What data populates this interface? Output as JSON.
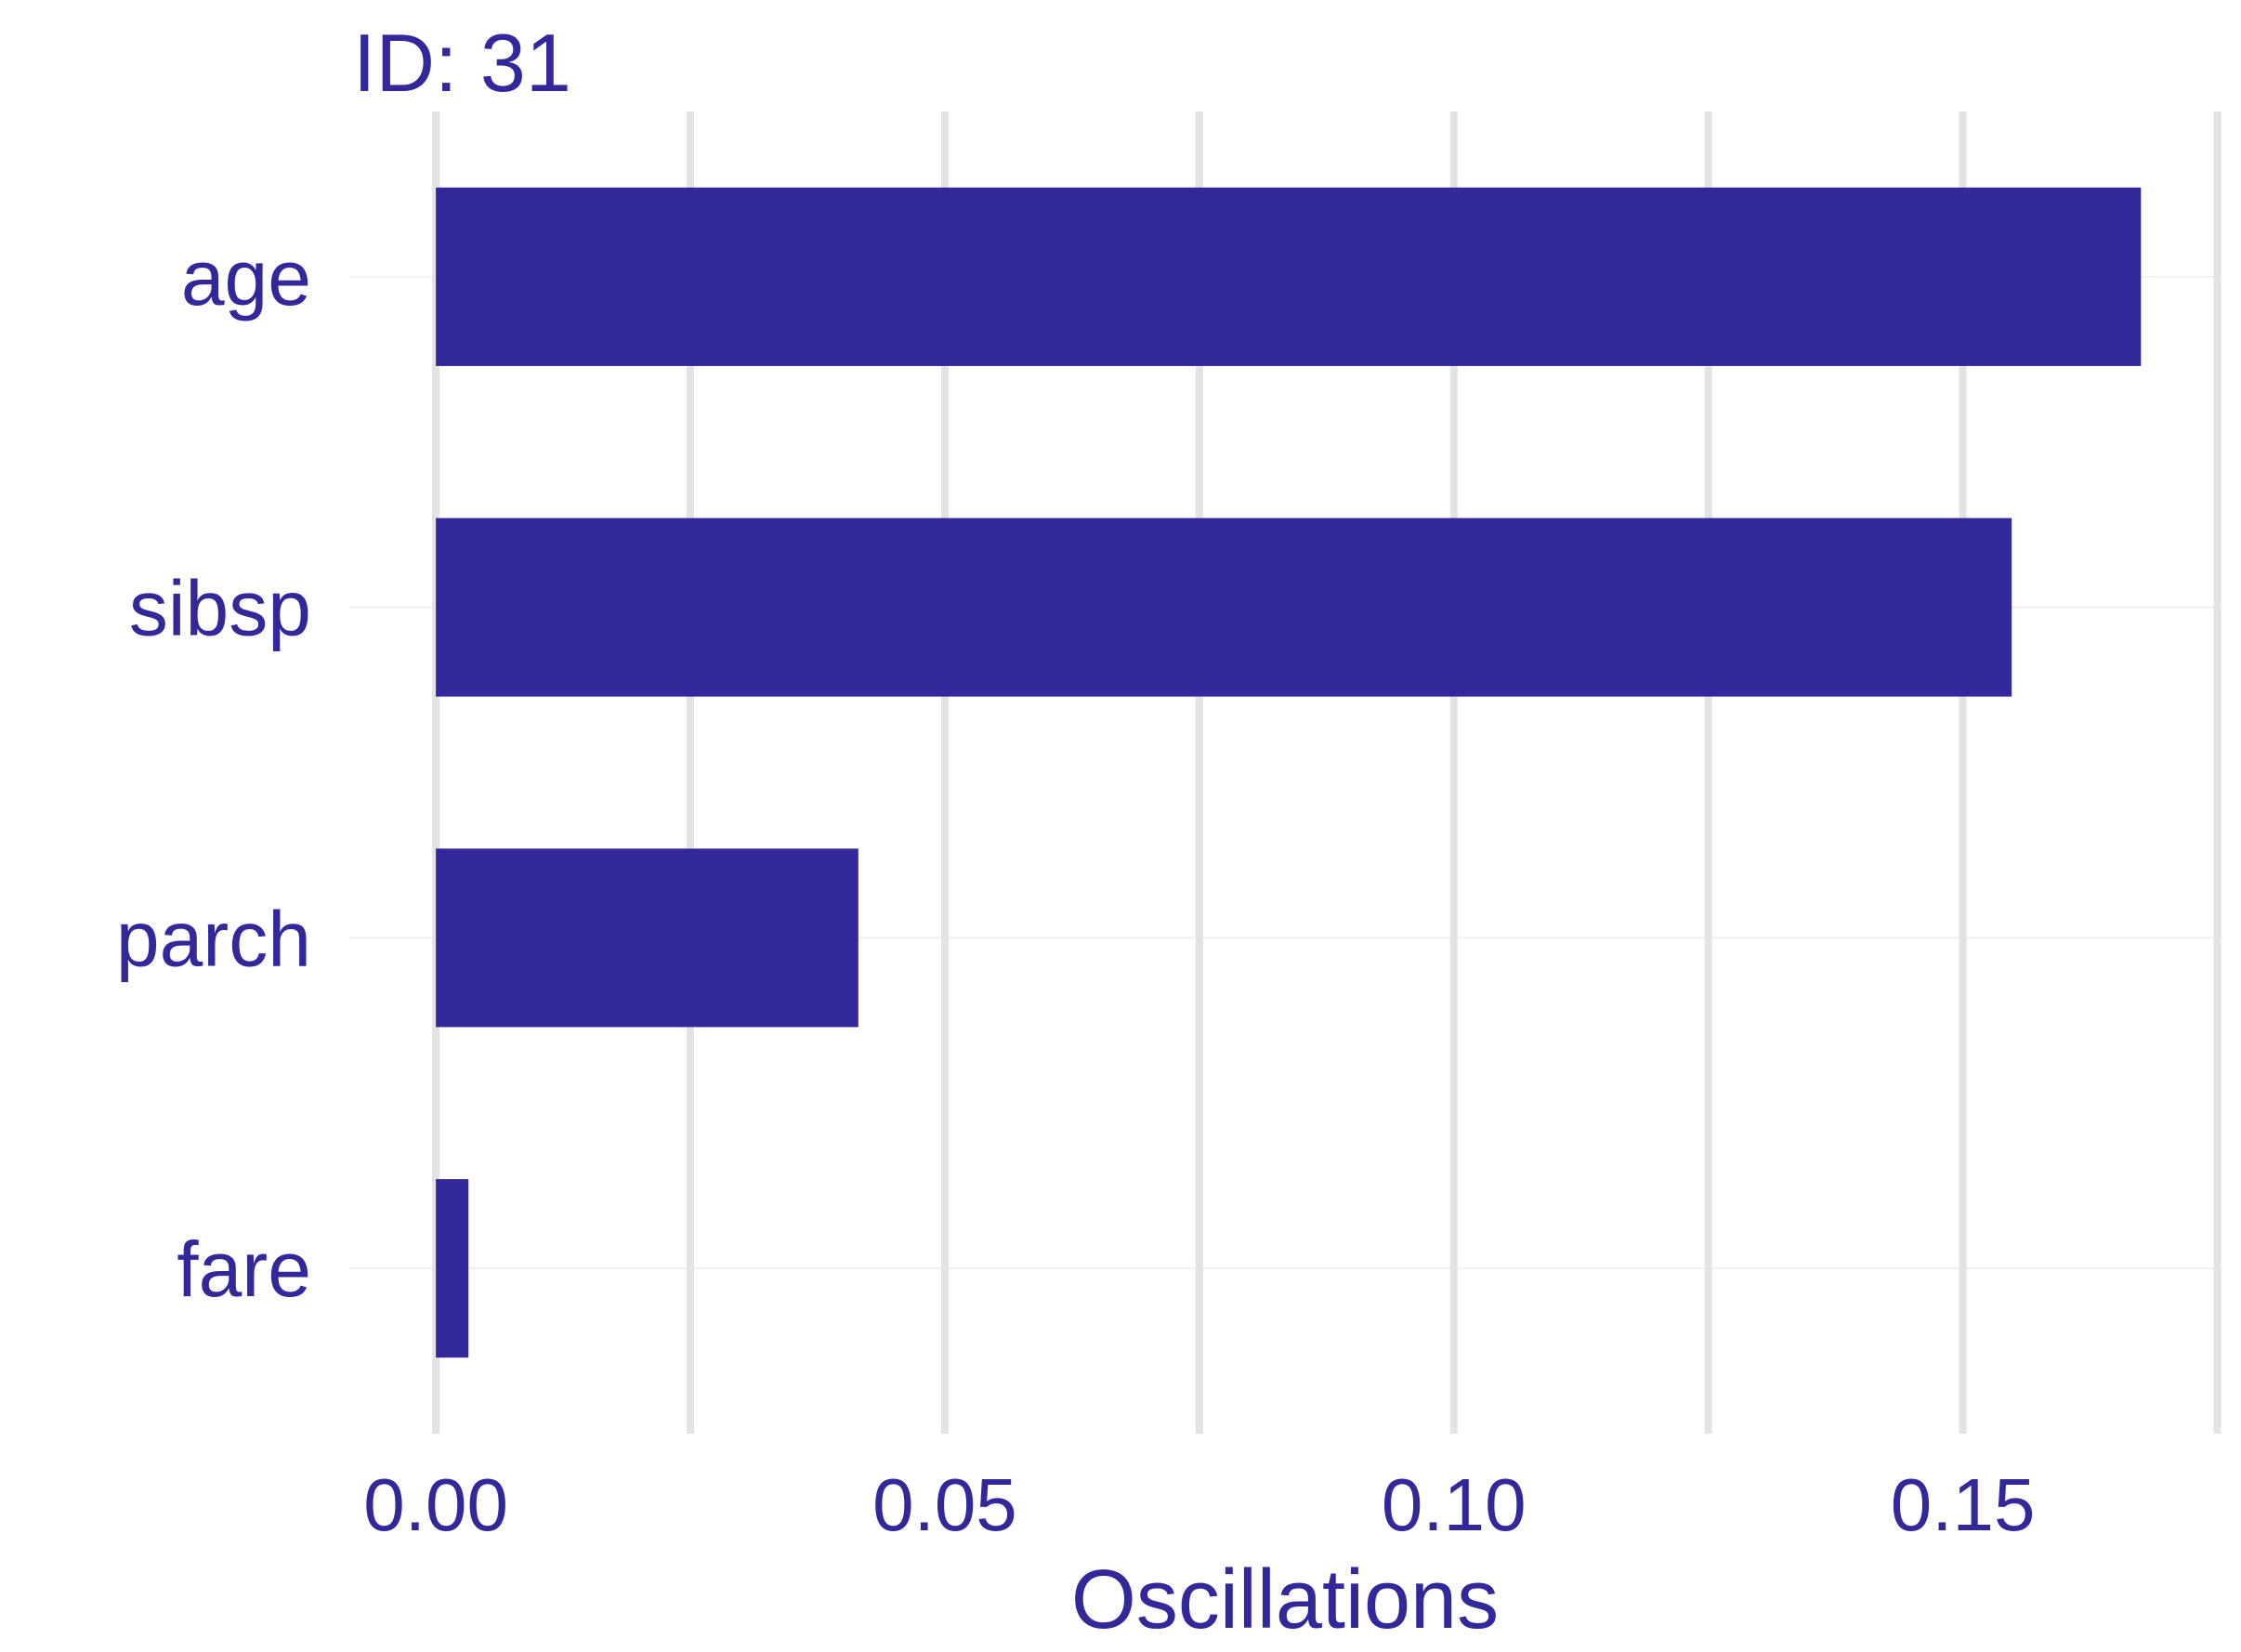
{
  "colors": {
    "bar": "#33289A",
    "text": "#33289A",
    "grid_major": "#E3E3E3",
    "grid_minor": "#EFEFEF",
    "background": "#FFFFFF"
  },
  "chart_data": {
    "type": "bar",
    "orientation": "horizontal",
    "title": "ID: 31",
    "xlabel": "Oscillations",
    "ylabel": "",
    "categories": [
      "age",
      "sibsp",
      "parch",
      "fare"
    ],
    "values": [
      0.1675,
      0.1548,
      0.0415,
      0.0032
    ],
    "xlim": [
      -0.0085,
      0.1755
    ],
    "xticks": [
      0.0,
      0.05,
      0.1,
      0.15
    ],
    "xtick_labels": [
      "0.00",
      "0.05",
      "0.10",
      "0.15"
    ],
    "xgrid_major": [
      0.0,
      0.025,
      0.05,
      0.075,
      0.1,
      0.125,
      0.15,
      0.175
    ],
    "grid": true,
    "legend": "none"
  }
}
